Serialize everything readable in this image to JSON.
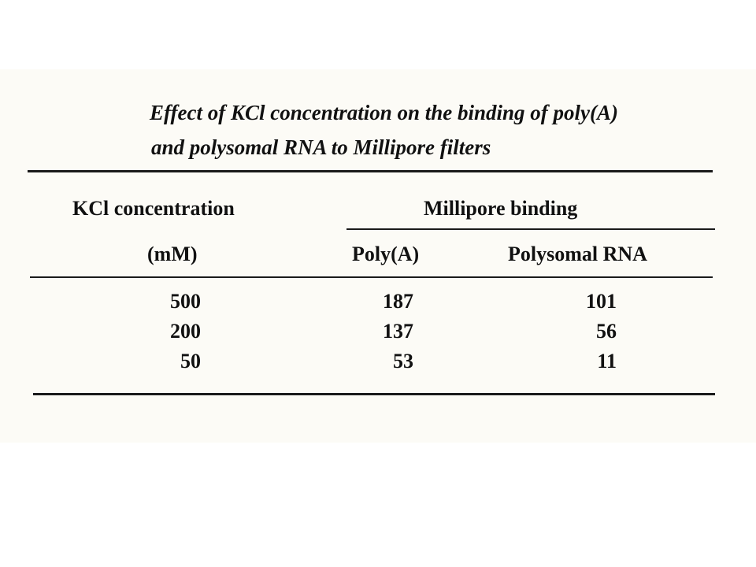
{
  "document": {
    "title_lines": [
      "Effect of KCl concentration on the binding of poly(A)",
      "and polysomal RNA to Millipore filters"
    ],
    "table": {
      "header": {
        "col1": "KCl concentration",
        "col1_unit": "(mM)",
        "group": "Millipore binding",
        "col2": "Poly(A)",
        "col3": "Polysomal RNA"
      },
      "rows": [
        [
          500,
          187,
          101
        ],
        [
          200,
          137,
          56
        ],
        [
          50,
          53,
          11
        ]
      ]
    }
  }
}
